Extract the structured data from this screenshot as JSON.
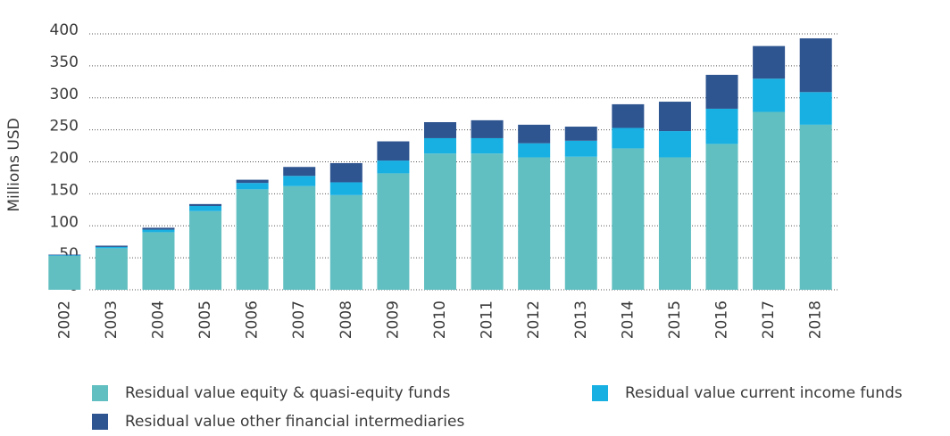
{
  "chart_data": {
    "type": "bar",
    "stacked": true,
    "y_label": "Millions USD",
    "categories": [
      "2002",
      "2003",
      "2004",
      "2005",
      "2006",
      "2007",
      "2008",
      "2009",
      "2010",
      "2011",
      "2012",
      "2013",
      "2014",
      "2015",
      "2016",
      "2017",
      "2018"
    ],
    "series": [
      {
        "name": "Residual value equity & quasi-equity funds",
        "color": "#62bfc1",
        "values": [
          53,
          65,
          90,
          123,
          157,
          162,
          148,
          182,
          213,
          213,
          207,
          208,
          221,
          207,
          228,
          278,
          258
        ]
      },
      {
        "name": "Residual value current income funds",
        "color": "#18b0e3",
        "values": [
          1,
          2,
          4,
          8,
          10,
          16,
          20,
          20,
          24,
          24,
          22,
          25,
          32,
          41,
          55,
          52,
          51
        ]
      },
      {
        "name": "Residual value other financial intermediaries",
        "color": "#2e5590",
        "values": [
          1,
          2,
          3,
          3,
          5,
          14,
          30,
          30,
          25,
          28,
          29,
          22,
          37,
          46,
          53,
          51,
          84
        ]
      }
    ],
    "ylim": [
      0,
      400
    ],
    "yticks": [
      0,
      50,
      100,
      150,
      200,
      250,
      300,
      350,
      400
    ],
    "grid": true
  }
}
